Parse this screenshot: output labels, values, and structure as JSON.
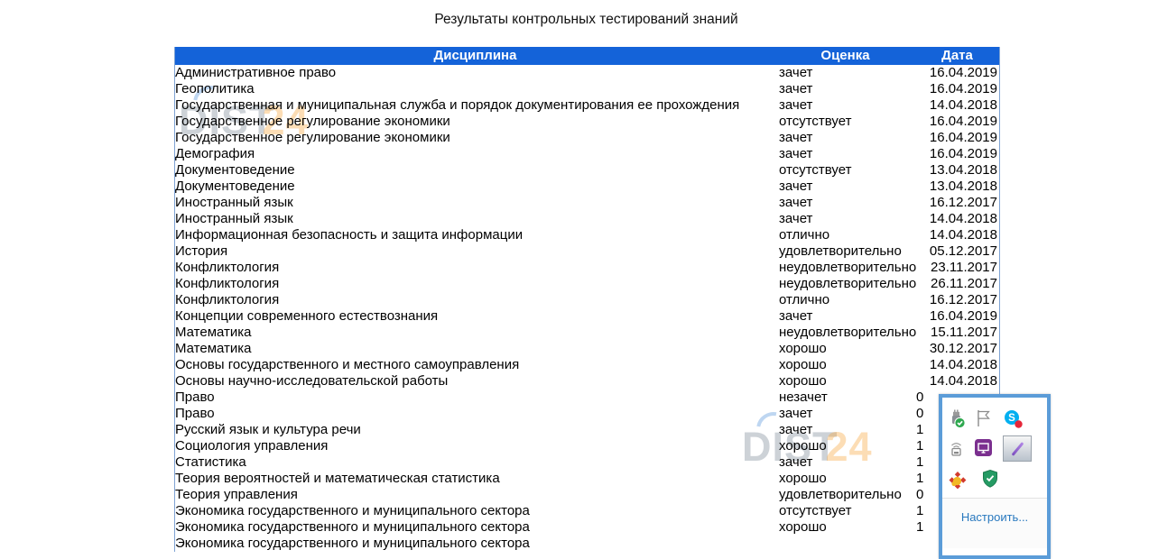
{
  "page": {
    "title": "Результаты контрольных тестирований знаний"
  },
  "table": {
    "headers": {
      "discipline": "Дисциплина",
      "grade": "Оценка",
      "date": "Дата"
    },
    "rows": [
      {
        "discipline": "Административное право",
        "grade": "зачет",
        "date": "16.04.2019"
      },
      {
        "discipline": "Геополитика",
        "grade": "зачет",
        "date": "16.04.2019"
      },
      {
        "discipline": "Государственная и муниципальная служба и порядок документирования ее прохождения",
        "grade": "зачет",
        "date": "14.04.2018"
      },
      {
        "discipline": "Государственное регулирование экономики",
        "grade": "отсутствует",
        "date": "16.04.2019"
      },
      {
        "discipline": "Государственное регулирование экономики",
        "grade": "зачет",
        "date": "16.04.2019"
      },
      {
        "discipline": "Демография",
        "grade": "зачет",
        "date": "16.04.2019"
      },
      {
        "discipline": "Документоведение",
        "grade": "отсутствует",
        "date": "13.04.2018"
      },
      {
        "discipline": "Документоведение",
        "grade": "зачет",
        "date": "13.04.2018"
      },
      {
        "discipline": "Иностранный язык",
        "grade": "зачет",
        "date": "16.12.2017"
      },
      {
        "discipline": "Иностранный язык",
        "grade": "зачет",
        "date": "14.04.2018"
      },
      {
        "discipline": "Информационная безопасность и защита информации",
        "grade": "отлично",
        "date": "14.04.2018"
      },
      {
        "discipline": "История",
        "grade": "удовлетворительно",
        "date": "05.12.2017"
      },
      {
        "discipline": "Конфликтология",
        "grade": "неудовлетворительно",
        "date": "23.11.2017"
      },
      {
        "discipline": "Конфликтология",
        "grade": "неудовлетворительно",
        "date": "26.11.2017"
      },
      {
        "discipline": "Конфликтология",
        "grade": "отлично",
        "date": "16.12.2017"
      },
      {
        "discipline": "Концепции современного естествознания",
        "grade": "зачет",
        "date": "16.04.2019"
      },
      {
        "discipline": "Математика",
        "grade": "неудовлетворительно",
        "date": "15.11.2017"
      },
      {
        "discipline": "Математика",
        "grade": "хорошо",
        "date": "30.12.2017"
      },
      {
        "discipline": "Основы государственного и местного самоуправления",
        "grade": "хорошо",
        "date": "14.04.2018"
      },
      {
        "discipline": "Основы научно-исследовательской работы",
        "grade": "хорошо",
        "date": "14.04.2018"
      },
      {
        "discipline": "Право",
        "grade": "незачет",
        "date": "0",
        "date_partial": true
      },
      {
        "discipline": "Право",
        "grade": "зачет",
        "date": "0",
        "date_partial": true
      },
      {
        "discipline": "Русский язык и культура речи",
        "grade": "зачет",
        "date": "1",
        "date_partial": true
      },
      {
        "discipline": "Социология управления",
        "grade": "хорошо",
        "date": "1",
        "date_partial": true
      },
      {
        "discipline": "Статистика",
        "grade": "зачет",
        "date": "1",
        "date_partial": true
      },
      {
        "discipline": "Теория вероятностей и математическая статистика",
        "grade": "хорошо",
        "date": "1",
        "date_partial": true
      },
      {
        "discipline": "Теория управления",
        "grade": "удовлетворительно",
        "date": "0",
        "date_partial": true
      },
      {
        "discipline": "Экономика государственного и муниципального сектора",
        "grade": "отсутствует",
        "date": "1",
        "date_partial": true
      },
      {
        "discipline": "Экономика государственного и муниципального сектора",
        "grade": "хорошо",
        "date": "1",
        "date_partial": true
      },
      {
        "discipline": "Экономика государственного и муниципального сектора",
        "grade": "",
        "date": ""
      }
    ]
  },
  "watermarks": [
    {
      "grey": "DIST",
      "orange": "24"
    },
    {
      "grey": "DIST",
      "orange": "24"
    }
  ],
  "tray_popup": {
    "customize_label": "Настроить...",
    "icons": [
      "usb-safely-remove-icon",
      "flag-icon",
      "skype-icon",
      "wireless-device-icon",
      "remote-app-icon",
      "pen-input-icon",
      "flower-switcher-icon",
      "security-shield-icon"
    ]
  },
  "colors": {
    "header_bg": "#1463D9",
    "header_text": "#FFFFFF",
    "table_border": "#7FA3D4",
    "popup_border": "#5B9CD8",
    "link": "#2878BE",
    "skype_blue": "#00AFF0",
    "notification_red": "#E5273A",
    "shield_green": "#259B64"
  }
}
